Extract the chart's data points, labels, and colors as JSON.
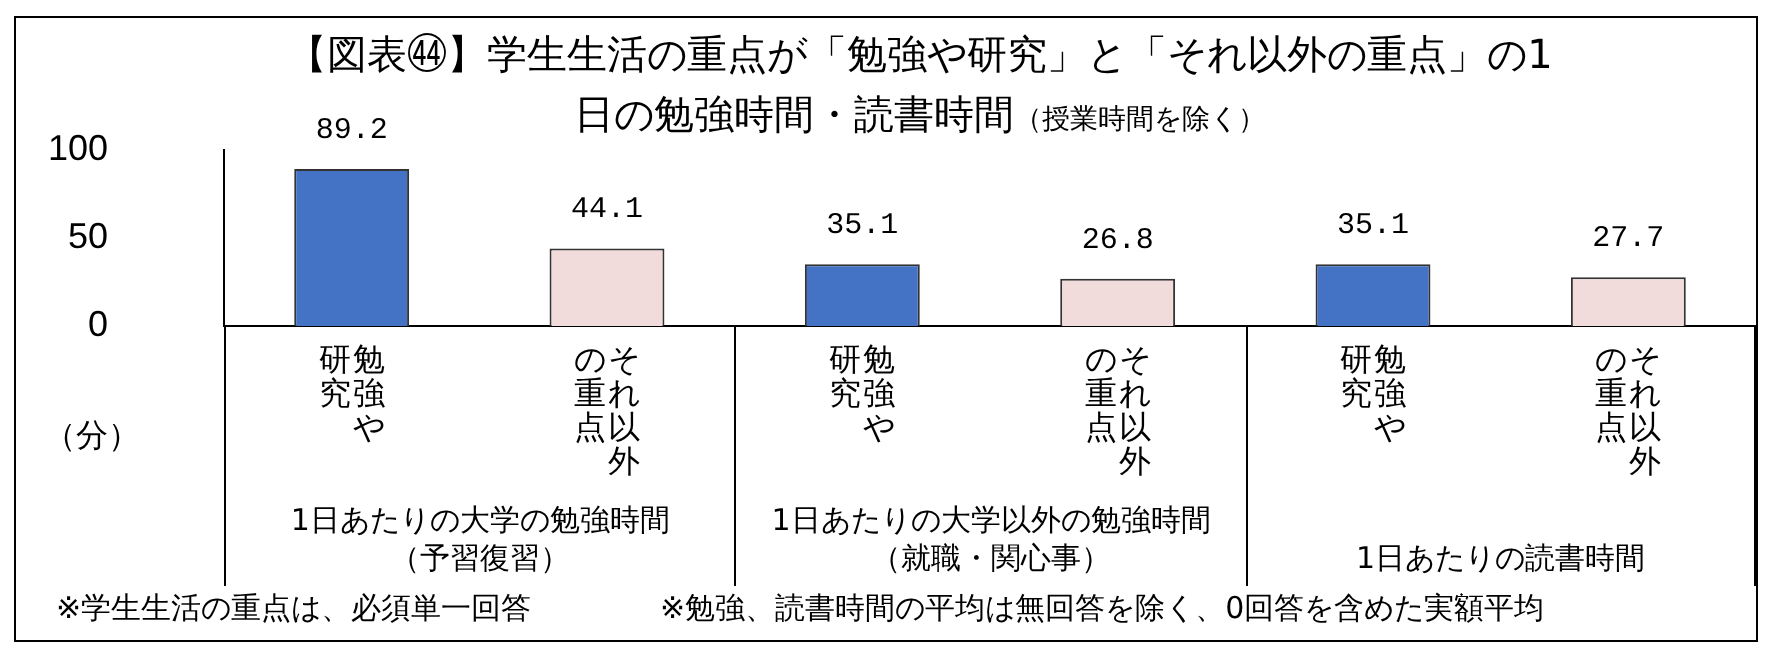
{
  "chart_data": {
    "type": "bar",
    "title": "【図表㊹】学生生活の重点が「勉強や研究」と「それ以外の重点」の1日の勉強時間・読書時間",
    "subtitle": "（授業時間を除く）",
    "ylabel": "（分）",
    "categories": [
      "勉強や研究",
      "それ以外の重点",
      "勉強や研究",
      "それ以外の重点",
      "勉強や研究",
      "それ以外の重点"
    ],
    "values": [
      89.2,
      44.1,
      35.1,
      26.8,
      35.1,
      27.7
    ],
    "colors": [
      "#4472c4",
      "#f2dcdb",
      "#4472c4",
      "#f2dcdb",
      "#4472c4",
      "#f2dcdb"
    ],
    "ylim": [
      0,
      100
    ],
    "yticks": [
      0,
      50,
      100
    ],
    "grid": false,
    "legend": false,
    "data_labels": true,
    "annotations": [
      "1日あたりの大学の勉強時間（予習復習）",
      "1日あたりの大学以外の勉強時間（就職・関心事）",
      "1日あたりの読書時間",
      "※学生生活の重点は、必須単一回答",
      "※勉強、読書時間の平均は無回答を除く、0回答を含めた実額平均"
    ]
  }
}
